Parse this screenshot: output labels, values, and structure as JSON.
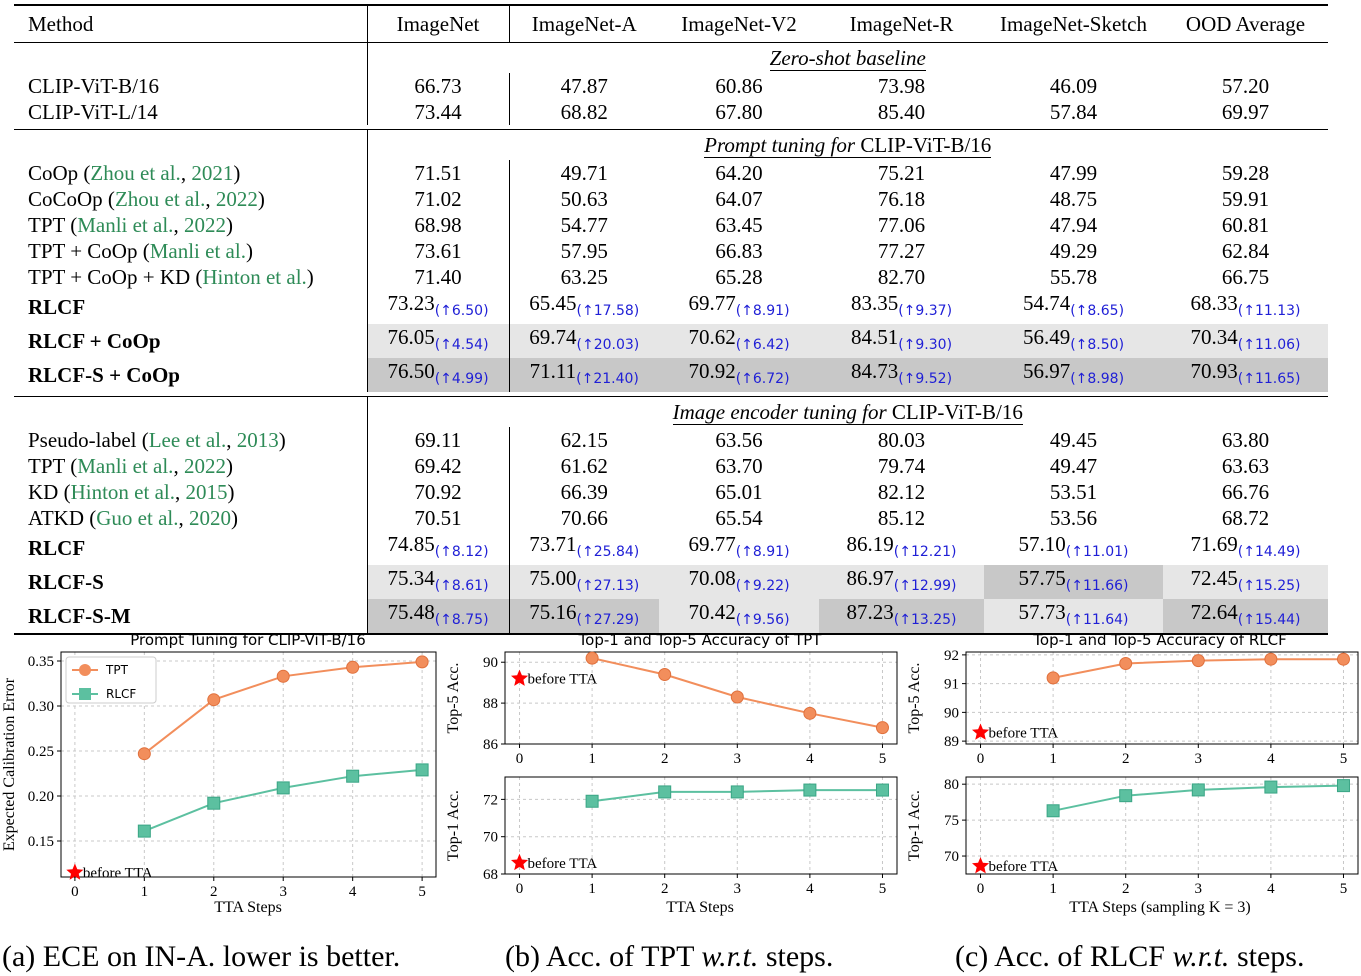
{
  "table": {
    "headers": [
      "Method",
      "ImageNet",
      "ImageNet-A",
      "ImageNet-V2",
      "ImageNet-R",
      "ImageNet-Sketch",
      "OOD Average"
    ],
    "sections": [
      {
        "title_it": "Zero-shot baseline",
        "title_rest": "",
        "rows": [
          {
            "name": "CLIP-ViT-B/16",
            "cite": "",
            "year": "",
            "bold": false,
            "vals": [
              "66.73",
              "47.87",
              "60.86",
              "73.98",
              "46.09",
              "57.20"
            ],
            "gains": [
              "",
              "",
              "",
              "",
              "",
              ""
            ],
            "shade": [
              "",
              "",
              "",
              "",
              "",
              ""
            ]
          },
          {
            "name": "CLIP-ViT-L/14",
            "cite": "",
            "year": "",
            "bold": false,
            "vals": [
              "73.44",
              "68.82",
              "67.80",
              "85.40",
              "57.84",
              "69.97"
            ],
            "gains": [
              "",
              "",
              "",
              "",
              "",
              ""
            ],
            "shade": [
              "",
              "",
              "",
              "",
              "",
              ""
            ]
          }
        ]
      },
      {
        "title_it": "Prompt tuning for",
        "title_rest": " CLIP-ViT-B/16",
        "rows": [
          {
            "name": "CoOp (",
            "cite": "Zhou et al.",
            "year": "2021",
            "bold": false,
            "vals": [
              "71.51",
              "49.71",
              "64.20",
              "75.21",
              "47.99",
              "59.28"
            ],
            "gains": [
              "",
              "",
              "",
              "",
              "",
              ""
            ],
            "shade": [
              "",
              "",
              "",
              "",
              "",
              ""
            ]
          },
          {
            "name": "CoCoOp (",
            "cite": "Zhou et al.",
            "year": "2022",
            "bold": false,
            "vals": [
              "71.02",
              "50.63",
              "64.07",
              "76.18",
              "48.75",
              "59.91"
            ],
            "gains": [
              "",
              "",
              "",
              "",
              "",
              ""
            ],
            "shade": [
              "",
              "",
              "",
              "",
              "",
              ""
            ]
          },
          {
            "name": "TPT (",
            "cite": "Manli et al.",
            "year": "2022",
            "bold": false,
            "vals": [
              "68.98",
              "54.77",
              "63.45",
              "77.06",
              "47.94",
              "60.81"
            ],
            "gains": [
              "",
              "",
              "",
              "",
              "",
              ""
            ],
            "shade": [
              "",
              "",
              "",
              "",
              "",
              ""
            ]
          },
          {
            "name": "TPT + CoOp (",
            "cite": "Manli et al.",
            "year": "",
            "bold": false,
            "vals": [
              "73.61",
              "57.95",
              "66.83",
              "77.27",
              "49.29",
              "62.84"
            ],
            "gains": [
              "",
              "",
              "",
              "",
              "",
              ""
            ],
            "shade": [
              "",
              "",
              "",
              "",
              "",
              ""
            ]
          },
          {
            "name": "TPT + CoOp + KD (",
            "cite": "Hinton et al.",
            "year": "",
            "bold": false,
            "vals": [
              "71.40",
              "63.25",
              "65.28",
              "82.70",
              "55.78",
              "66.75"
            ],
            "gains": [
              "",
              "",
              "",
              "",
              "",
              ""
            ],
            "shade": [
              "",
              "",
              "",
              "",
              "",
              ""
            ]
          },
          {
            "name": "RLCF",
            "cite": "",
            "year": "",
            "bold": true,
            "vals": [
              "73.23",
              "65.45",
              "69.77",
              "83.35",
              "54.74",
              "68.33"
            ],
            "gains": [
              "(↑6.50)",
              "(↑17.58)",
              "(↑8.91)",
              "(↑9.37)",
              "(↑8.65)",
              "(↑11.13)"
            ],
            "shade": [
              "",
              "",
              "",
              "",
              "",
              ""
            ]
          },
          {
            "name": "RLCF + CoOp",
            "cite": "",
            "year": "",
            "bold": true,
            "vals": [
              "76.05",
              "69.74",
              "70.62",
              "84.51",
              "56.49",
              "70.34"
            ],
            "gains": [
              "(↑4.54)",
              "(↑20.03)",
              "(↑6.42)",
              "(↑9.30)",
              "(↑8.50)",
              "(↑11.06)"
            ],
            "shade": [
              "g1",
              "g1",
              "g1",
              "g1",
              "g1",
              "g1"
            ]
          },
          {
            "name": "RLCF-S + CoOp",
            "cite": "",
            "year": "",
            "bold": true,
            "vals": [
              "76.50",
              "71.11",
              "70.92",
              "84.73",
              "56.97",
              "70.93"
            ],
            "gains": [
              "(↑4.99)",
              "(↑21.40)",
              "(↑6.72)",
              "(↑9.52)",
              "(↑8.98)",
              "(↑11.65)"
            ],
            "shade": [
              "g2",
              "g2",
              "g2",
              "g2",
              "g2",
              "g2"
            ]
          }
        ]
      },
      {
        "title_it": "Image encoder tuning for",
        "title_rest": " CLIP-ViT-B/16",
        "rows": [
          {
            "name": "Pseudo-label (",
            "cite": "Lee et al.",
            "year": "2013",
            "bold": false,
            "vals": [
              "69.11",
              "62.15",
              "63.56",
              "80.03",
              "49.45",
              "63.80"
            ],
            "gains": [
              "",
              "",
              "",
              "",
              "",
              ""
            ],
            "shade": [
              "",
              "",
              "",
              "",
              "",
              ""
            ]
          },
          {
            "name": "TPT (",
            "cite": "Manli et al.",
            "year": "2022",
            "bold": false,
            "vals": [
              "69.42",
              "61.62",
              "63.70",
              "79.74",
              "49.47",
              "63.63"
            ],
            "gains": [
              "",
              "",
              "",
              "",
              "",
              ""
            ],
            "shade": [
              "",
              "",
              "",
              "",
              "",
              ""
            ]
          },
          {
            "name": "KD (",
            "cite": "Hinton et al.",
            "year": "2015",
            "bold": false,
            "vals": [
              "70.92",
              "66.39",
              "65.01",
              "82.12",
              "53.51",
              "66.76"
            ],
            "gains": [
              "",
              "",
              "",
              "",
              "",
              ""
            ],
            "shade": [
              "",
              "",
              "",
              "",
              "",
              ""
            ]
          },
          {
            "name": "ATKD (",
            "cite": "Guo et al.",
            "year": "2020",
            "bold": false,
            "vals": [
              "70.51",
              "70.66",
              "65.54",
              "85.12",
              "53.56",
              "68.72"
            ],
            "gains": [
              "",
              "",
              "",
              "",
              "",
              ""
            ],
            "shade": [
              "",
              "",
              "",
              "",
              "",
              ""
            ]
          },
          {
            "name": "RLCF",
            "cite": "",
            "year": "",
            "bold": true,
            "vals": [
              "74.85",
              "73.71",
              "69.77",
              "86.19",
              "57.10",
              "71.69"
            ],
            "gains": [
              "(↑8.12)",
              "(↑25.84)",
              "(↑8.91)",
              "(↑12.21)",
              "(↑11.01)",
              "(↑14.49)"
            ],
            "shade": [
              "",
              "",
              "",
              "",
              "",
              ""
            ]
          },
          {
            "name": "RLCF-S",
            "cite": "",
            "year": "",
            "bold": true,
            "vals": [
              "75.34",
              "75.00",
              "70.08",
              "86.97",
              "57.75",
              "72.45"
            ],
            "gains": [
              "(↑8.61)",
              "(↑27.13)",
              "(↑9.22)",
              "(↑12.99)",
              "(↑11.66)",
              "(↑15.25)"
            ],
            "shade": [
              "g1",
              "g1",
              "g1",
              "g1",
              "g2",
              "g1"
            ]
          },
          {
            "name": "RLCF-S-M",
            "cite": "",
            "year": "",
            "bold": true,
            "vals": [
              "75.48",
              "75.16",
              "70.42",
              "87.23",
              "57.73",
              "72.64"
            ],
            "gains": [
              "(↑8.75)",
              "(↑27.29)",
              "(↑9.56)",
              "(↑13.25)",
              "(↑11.64)",
              "(↑15.44)"
            ],
            "shade": [
              "g2",
              "g2",
              "g1",
              "g2",
              "g1",
              "g2"
            ]
          }
        ]
      }
    ]
  },
  "chart_data": [
    {
      "type": "line",
      "title": "Prompt Tuning for CLIP-ViT-B/16",
      "xlabel": "TTA Steps",
      "ylabel": "Expected Calibration Error",
      "xlim": [
        -0.2,
        5.2
      ],
      "ylim": [
        0.11,
        0.36
      ],
      "yticks": [
        0.15,
        0.2,
        0.25,
        0.3,
        0.35
      ],
      "ytick_labels": [
        "0.15",
        "0.20",
        "0.25",
        "0.30",
        "0.35"
      ],
      "xticks": [
        0,
        1,
        2,
        3,
        4,
        5
      ],
      "xtick_labels": [
        "0",
        "1",
        "2",
        "3",
        "4",
        "5"
      ],
      "series": [
        {
          "name": "TPT",
          "color": "#f28e5c",
          "marker": "circle",
          "x": [
            1,
            2,
            3,
            4,
            5
          ],
          "values": [
            0.247,
            0.307,
            0.333,
            0.343,
            0.349
          ]
        },
        {
          "name": "RLCF",
          "color": "#5cc0a0",
          "marker": "square",
          "x": [
            1,
            2,
            3,
            4,
            5
          ],
          "values": [
            0.161,
            0.192,
            0.209,
            0.222,
            0.229
          ]
        }
      ],
      "before_point": {
        "x": 0,
        "y": 0.115,
        "label": "before TTA"
      },
      "legend": "top-left"
    },
    {
      "type": "line",
      "title": "Top-1 and Top-5 Accuracy of TPT",
      "xlabel": "TTA Steps",
      "panels": [
        {
          "ylabel": "Top-5 Acc.",
          "ylim": [
            86,
            90.5
          ],
          "yticks": [
            86,
            88,
            90
          ],
          "ytick_labels": [
            "86",
            "88",
            "90"
          ],
          "series": [
            {
              "name": "TPT Top-5",
              "color": "#f28e5c",
              "marker": "circle",
              "x": [
                1,
                2,
                3,
                4,
                5
              ],
              "values": [
                90.2,
                89.4,
                88.3,
                87.5,
                86.8
              ]
            }
          ],
          "before_point": {
            "x": 0,
            "y": 89.2,
            "label": "before TTA"
          }
        },
        {
          "ylabel": "Top-1 Acc.",
          "ylim": [
            68,
            73.2
          ],
          "yticks": [
            68,
            70,
            72
          ],
          "ytick_labels": [
            "68",
            "70",
            "72"
          ],
          "series": [
            {
              "name": "TPT Top-1",
              "color": "#5cc0a0",
              "marker": "square",
              "x": [
                1,
                2,
                3,
                4,
                5
              ],
              "values": [
                71.9,
                72.4,
                72.4,
                72.5,
                72.5
              ]
            }
          ],
          "before_point": {
            "x": 0,
            "y": 68.6,
            "label": "before TTA"
          }
        }
      ],
      "xticks": [
        0,
        1,
        2,
        3,
        4,
        5
      ],
      "xtick_labels": [
        "0",
        "1",
        "2",
        "3",
        "4",
        "5"
      ]
    },
    {
      "type": "line",
      "title": "Top-1 and Top-5 Accuracy of RLCF",
      "xlabel": "TTA Steps (sampling K = 3)",
      "panels": [
        {
          "ylabel": "Top-5 Acc.",
          "ylim": [
            88.9,
            92.1
          ],
          "yticks": [
            89,
            90,
            91,
            92
          ],
          "ytick_labels": [
            "89",
            "90",
            "91",
            "92"
          ],
          "series": [
            {
              "name": "RLCF Top-5",
              "color": "#f28e5c",
              "marker": "circle",
              "x": [
                1,
                2,
                3,
                4,
                5
              ],
              "values": [
                91.2,
                91.7,
                91.8,
                91.85,
                91.85
              ]
            }
          ],
          "before_point": {
            "x": 0,
            "y": 89.3,
            "label": "before TTA"
          }
        },
        {
          "ylabel": "Top-1 Acc.",
          "ylim": [
            67.5,
            81
          ],
          "yticks": [
            70,
            75,
            80
          ],
          "ytick_labels": [
            "70",
            "75",
            "80"
          ],
          "series": [
            {
              "name": "RLCF Top-1",
              "color": "#5cc0a0",
              "marker": "square",
              "x": [
                1,
                2,
                3,
                4,
                5
              ],
              "values": [
                76.3,
                78.4,
                79.2,
                79.6,
                79.8
              ]
            }
          ],
          "before_point": {
            "x": 0,
            "y": 68.6,
            "label": "before TTA"
          }
        }
      ],
      "xticks": [
        0,
        1,
        2,
        3,
        4,
        5
      ],
      "xtick_labels": [
        "0",
        "1",
        "2",
        "3",
        "4",
        "5"
      ]
    }
  ],
  "captions": {
    "a_pre": "(a) ECE on IN-A. lower is better.",
    "a_it": "",
    "b_pre": "(b) Acc. of TPT ",
    "b_it": "w.r.t.",
    "b_post": " steps.",
    "c_pre": "(c) Acc. of RLCF ",
    "c_it": "w.r.t.",
    "c_post": " steps."
  }
}
